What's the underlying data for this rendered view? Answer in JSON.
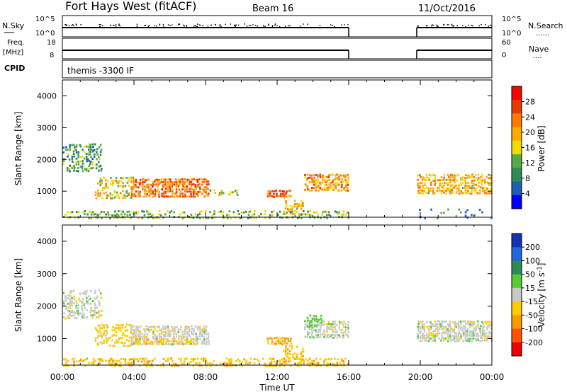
{
  "header": {
    "station": "Fort Hays West (fitACF)",
    "beam": "Beam 16",
    "date": "11/Oct/2016"
  },
  "param_panels": {
    "nsky": {
      "label": "N.Sky",
      "ticks": [
        "10^5",
        "10^0"
      ],
      "right_ticks": [
        "10^5",
        "10^0"
      ],
      "right_label": "N.Search",
      "right_marker": "......"
    },
    "freq": {
      "label_top": "Freq.",
      "label_unit": "[MHz]",
      "ticks": [
        "18",
        "8"
      ],
      "right_ticks": [
        "60",
        "0"
      ],
      "right_label": "Nave",
      "right_marker": "...."
    },
    "cpid": {
      "label": "CPID",
      "program": "themis -3300 IF"
    }
  },
  "power_panel": {
    "ylabel": "Slant Range [km]",
    "yticks": [
      "4000",
      "3000",
      "2000",
      "1000"
    ],
    "colorbar_label": "Power [dB]",
    "colorbar_ticks": [
      "28",
      "24",
      "20",
      "16",
      "12",
      "8",
      "4"
    ],
    "colors": [
      "#ff0000",
      "#e63b00",
      "#ff7800",
      "#ffaa00",
      "#eedd00",
      "#55aa44",
      "#2e8b57",
      "#1e5faf",
      "#0000ff"
    ]
  },
  "velocity_panel": {
    "ylabel": "Slant Range [km]",
    "yticks": [
      "4000",
      "3000",
      "2000",
      "1000"
    ],
    "colorbar_label_prefix": "Velocity [m s",
    "colorbar_label_sup": "-1",
    "colorbar_label_suffix": "]",
    "colorbar_ticks": [
      "200",
      "100",
      "50",
      "15",
      "-15",
      "-50",
      "-100",
      "-200"
    ],
    "colors": [
      "#1432b4",
      "#2266dd",
      "#2e8b57",
      "#55cc33",
      "#c8c8c8",
      "#ffcc00",
      "#ff9900",
      "#ff5500",
      "#ee0000"
    ]
  },
  "x_axis": {
    "ticks": [
      "00:00",
      "04:00",
      "08:00",
      "12:00",
      "16:00",
      "20:00",
      "00:00"
    ],
    "label": "Time UT"
  },
  "chart_data": [
    {
      "type": "heatmap",
      "title": "Fort Hays West (fitACF)",
      "quantity": "Power",
      "unit": "dB",
      "xlabel": "Time UT",
      "ylabel": "Slant Range [km]",
      "xlim": [
        0,
        24
      ],
      "ylim": [
        180,
        4500
      ],
      "clim": [
        0,
        30
      ],
      "data_gap_hours": [
        16.0,
        19.8
      ],
      "regions": [
        {
          "t0": 0.0,
          "t1": 2.2,
          "r0": 1650,
          "r1": 2550,
          "v": 10,
          "density": 0.55
        },
        {
          "t0": 1.8,
          "t1": 4.0,
          "r0": 800,
          "r1": 1500,
          "v": 16,
          "density": 0.55
        },
        {
          "t0": 3.8,
          "t1": 8.2,
          "r0": 850,
          "r1": 1450,
          "v": 22,
          "density": 0.8
        },
        {
          "t0": 8.2,
          "t1": 9.8,
          "r0": 900,
          "r1": 1100,
          "v": 14,
          "density": 0.35
        },
        {
          "t0": 11.4,
          "t1": 12.8,
          "r0": 850,
          "r1": 1100,
          "v": 22,
          "density": 0.85
        },
        {
          "t0": 12.3,
          "t1": 13.5,
          "r0": 300,
          "r1": 850,
          "v": 18,
          "density": 0.5
        },
        {
          "t0": 13.5,
          "t1": 16.0,
          "r0": 1050,
          "r1": 1600,
          "v": 20,
          "density": 0.8
        },
        {
          "t0": 19.8,
          "t1": 24.0,
          "r0": 950,
          "r1": 1600,
          "v": 18,
          "density": 0.8
        },
        {
          "t0": 0.0,
          "t1": 16.0,
          "r0": 180,
          "r1": 450,
          "v": 12,
          "density": 0.5
        },
        {
          "t0": 19.8,
          "t1": 24.0,
          "r0": 180,
          "r1": 500,
          "v": 8,
          "density": 0.15
        }
      ]
    },
    {
      "type": "heatmap",
      "title": "Fort Hays West (fitACF)",
      "quantity": "Velocity",
      "unit": "m s-1",
      "xlabel": "Time UT",
      "ylabel": "Slant Range [km]",
      "xlim": [
        0,
        24
      ],
      "ylim": [
        180,
        4500
      ],
      "clim": [
        -250,
        250
      ],
      "data_gap_hours": [
        16.0,
        19.8
      ],
      "regions": [
        {
          "t0": 0.0,
          "t1": 2.2,
          "r0": 1650,
          "r1": 2550,
          "v": 0,
          "density": 0.55
        },
        {
          "t0": 1.8,
          "t1": 4.0,
          "r0": 800,
          "r1": 1500,
          "v": -30,
          "density": 0.55
        },
        {
          "t0": 3.8,
          "t1": 8.2,
          "r0": 850,
          "r1": 1450,
          "v": 0,
          "density": 0.8
        },
        {
          "t0": 4.0,
          "t1": 7.5,
          "r0": 850,
          "r1": 1050,
          "v": -40,
          "density": 0.5
        },
        {
          "t0": 11.4,
          "t1": 12.8,
          "r0": 850,
          "r1": 1100,
          "v": -60,
          "density": 0.85
        },
        {
          "t0": 12.3,
          "t1": 13.5,
          "r0": 300,
          "r1": 850,
          "v": -40,
          "density": 0.5
        },
        {
          "t0": 13.5,
          "t1": 16.0,
          "r0": 1050,
          "r1": 1600,
          "v": 0,
          "density": 0.8
        },
        {
          "t0": 13.5,
          "t1": 14.5,
          "r0": 1400,
          "r1": 1800,
          "v": 30,
          "density": 0.5
        },
        {
          "t0": 19.8,
          "t1": 24.0,
          "r0": 950,
          "r1": 1600,
          "v": 0,
          "density": 0.8
        },
        {
          "t0": 0.0,
          "t1": 16.0,
          "r0": 180,
          "r1": 450,
          "v": -40,
          "density": 0.45
        }
      ]
    }
  ]
}
